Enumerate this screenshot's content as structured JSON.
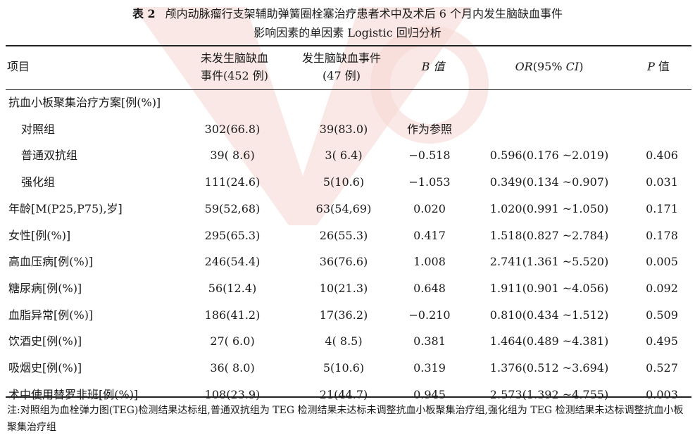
{
  "caption": {
    "label": "表 2",
    "title_line1": "颅内动脉瘤行支架辅助弹簧圈栓塞治疗患者术中及术后 6 个月内发生脑缺血事件",
    "title_line2": "影响因素的单因素 Logistic 回归分析"
  },
  "table": {
    "headers": {
      "item": "项目",
      "nonevent_line1": "未发生脑缺血",
      "nonevent_line2": "事件(452 例)",
      "event_line1": "发生脑缺血事件",
      "event_line2": "(47 例)",
      "b": "B 值",
      "or_italic": "OR",
      "or_rest": "(95% ",
      "or_ci": "CI",
      "or_close": ")",
      "p_italic": "P",
      "p_rest": " 值"
    },
    "rows": [
      {
        "label": "抗血小板聚集治疗方案[例(%)]",
        "nonevent": "",
        "event": "",
        "b": "",
        "or": "",
        "p": "",
        "indent": false
      },
      {
        "label": "对照组",
        "nonevent": "302(66.8)",
        "event": "39(83.0)",
        "b": "作为参照",
        "or": "",
        "p": "",
        "indent": true
      },
      {
        "label": "普通双抗组",
        "nonevent": "39( 8.6)",
        "event": "3( 6.4)",
        "b": "−0.518",
        "or": "0.596(0.176 ~2.019)",
        "p": "0.406",
        "indent": true
      },
      {
        "label": "强化组",
        "nonevent": "111(24.6)",
        "event": "5(10.6)",
        "b": "−1.053",
        "or": "0.349(0.134 ~0.907)",
        "p": "0.031",
        "indent": true
      },
      {
        "label": "年龄[M(P25,P75),岁]",
        "nonevent": "59(52,68)",
        "event": "63(54,69)",
        "b": "0.020",
        "or": "1.020(0.991 ~1.050)",
        "p": "0.171",
        "indent": false
      },
      {
        "label": "女性[例(%)]",
        "nonevent": "295(65.3)",
        "event": "26(55.3)",
        "b": "0.417",
        "or": "1.518(0.827 ~2.784)",
        "p": "0.178",
        "indent": false
      },
      {
        "label": "高血压病[例(%)]",
        "nonevent": "246(54.4)",
        "event": "36(76.6)",
        "b": "1.008",
        "or": "2.741(1.361 ~5.520)",
        "p": "0.005",
        "indent": false
      },
      {
        "label": "糖尿病[例(%)]",
        "nonevent": "56(12.4)",
        "event": "10(21.3)",
        "b": "0.648",
        "or": "1.911(0.901 ~4.056)",
        "p": "0.092",
        "indent": false
      },
      {
        "label": "血脂异常[例(%)]",
        "nonevent": "186(41.2)",
        "event": "17(36.2)",
        "b": "−0.210",
        "or": "0.810(0.434 ~1.512)",
        "p": "0.509",
        "indent": false
      },
      {
        "label": "饮酒史[例(%)]",
        "nonevent": "27( 6.0)",
        "event": "4( 8.5)",
        "b": "0.381",
        "or": "1.464(0.489 ~4.381)",
        "p": "0.495",
        "indent": false
      },
      {
        "label": "吸烟史[例(%)]",
        "nonevent": "36( 8.0)",
        "event": "5(10.6)",
        "b": "0.319",
        "or": "1.376(0.512 ~3.694)",
        "p": "0.527",
        "indent": false
      },
      {
        "label": "术中使用替罗非班[例(%)]",
        "nonevent": "108(23.9)",
        "event": "21(44.7)",
        "b": "0.945",
        "or": "2.573(1.392 ~4.755)",
        "p": "0.003",
        "indent": false
      }
    ]
  },
  "note": "注:对照组为血栓弹力图(TEG)检测结果达标组,普通双抗组为 TEG 检测结果未达标未调整抗血小板聚集治疗组,强化组为 TEG 检测结果未达标调整抗血小板聚集治疗组",
  "colors": {
    "watermark": "#f6d9d6",
    "rule": "#222222"
  }
}
